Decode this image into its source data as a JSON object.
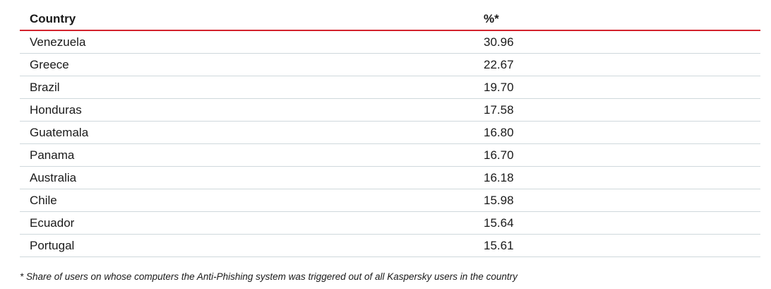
{
  "table": {
    "headers": [
      "Country",
      "%*"
    ],
    "rows": [
      {
        "country": "Venezuela",
        "percent": "30.96"
      },
      {
        "country": "Greece",
        "percent": "22.67"
      },
      {
        "country": "Brazil",
        "percent": "19.70"
      },
      {
        "country": "Honduras",
        "percent": "17.58"
      },
      {
        "country": "Guatemala",
        "percent": "16.80"
      },
      {
        "country": "Panama",
        "percent": "16.70"
      },
      {
        "country": "Australia",
        "percent": "16.18"
      },
      {
        "country": "Chile",
        "percent": "15.98"
      },
      {
        "country": "Ecuador",
        "percent": "15.64"
      },
      {
        "country": "Portugal",
        "percent": "15.61"
      }
    ]
  },
  "footnote": "* Share of users on whose computers the Anti-Phishing system was triggered out of all Kaspersky users in the country",
  "colors": {
    "header_rule": "#d3232d",
    "row_rule": "#cfd8dc"
  }
}
